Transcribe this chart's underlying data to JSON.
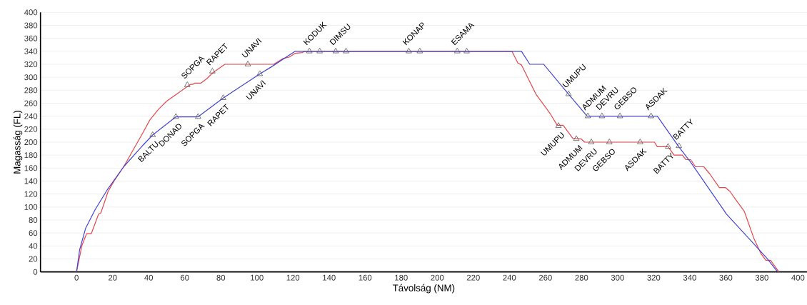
{
  "chart_data": {
    "type": "line",
    "xlabel": "Távolság (NM)",
    "ylabel": "Magasság (FL)",
    "xlim": [
      -20,
      405
    ],
    "xticks": [
      0,
      20,
      40,
      60,
      80,
      100,
      120,
      140,
      160,
      180,
      200,
      220,
      240,
      260,
      280,
      300,
      320,
      340,
      360,
      380,
      400
    ],
    "ylim": [
      0,
      400
    ],
    "yticks": [
      0,
      20,
      40,
      60,
      80,
      100,
      120,
      140,
      160,
      180,
      200,
      220,
      240,
      260,
      280,
      300,
      320,
      340,
      360,
      380,
      400
    ],
    "grid": "y",
    "series": [
      {
        "color": "#e0474c",
        "marker": "none",
        "x": [
          0,
          3,
          5.6,
          8.2,
          12.2,
          13.5,
          17.5,
          20.8,
          26.1,
          31.4,
          36.7,
          40.6,
          45.2,
          49.9,
          56.5,
          63.1,
          64.4,
          65.7,
          69,
          72.3,
          75.6,
          82.2,
          109.3,
          114.6,
          117.9,
          121.2,
          125.2,
          126.5,
          241.4,
          244.7,
          246.7,
          254.7,
          262.6,
          266.5,
          269.8,
          275.1,
          277.1,
          279.8,
          281.7,
          320.4,
          322,
          328,
          331.3,
          335.9,
          337.9,
          340.5,
          343.2,
          347.8,
          351.1,
          356.4,
          359.7,
          362.3,
          365.6,
          370.3,
          375.5,
          379.5,
          382.2,
          384.8,
          389.4
        ],
        "values": [
          0,
          41,
          59,
          59,
          89,
          91,
          124,
          140,
          162,
          188,
          214,
          234,
          250,
          263,
          276,
          289,
          289,
          291,
          291,
          298,
          307,
          320,
          320,
          329,
          331,
          337,
          338,
          340,
          340,
          322,
          319,
          274,
          244,
          226,
          226,
          206,
          205,
          205,
          200,
          200,
          193,
          193,
          180,
          180,
          173,
          173,
          162,
          162,
          151,
          130,
          130,
          124,
          111,
          93,
          52,
          28,
          18,
          18,
          0
        ]
      },
      {
        "color": "#4343cf",
        "marker": "none",
        "x": [
          0,
          1.7,
          5,
          10.3,
          16.9,
          26.1,
          36.7,
          42.2,
          55.1,
          67.4,
          81.3,
          101.6,
          108,
          121.2,
          246.7,
          251.3,
          259,
          272.8,
          283.1,
          322,
          333.9,
          340.5,
          360.4,
          373.6,
          382.8,
          388.7
        ],
        "values": [
          0,
          34,
          67,
          96,
          126,
          162,
          195,
          211,
          239,
          239,
          268,
          305,
          316,
          340,
          340,
          320,
          320,
          274,
          240,
          240,
          193,
          169,
          89,
          49,
          21,
          0
        ]
      },
      {
        "type": "scatter",
        "color": "#555555",
        "marker": "triangle",
        "x": [
          61.4,
          75.3,
          95,
          129.1,
          143.7,
          184.2,
          211.1,
          267.2,
          277.1,
          285.4,
          295.4,
          312.5,
          328
        ],
        "values": [
          288,
          309,
          320,
          340,
          340,
          340,
          340,
          225,
          205,
          200,
          200,
          200,
          193
        ]
      },
      {
        "type": "scatter",
        "color": "#555555",
        "marker": "triangle",
        "x": [
          42.2,
          55.1,
          67.4,
          81.3,
          101.6,
          134.8,
          149.4,
          190.3,
          216.3,
          272.8,
          283.5,
          291.3,
          301.3,
          318.5,
          334
        ],
        "values": [
          211,
          239,
          239,
          268,
          305,
          340,
          340,
          340,
          340,
          274,
          240,
          240,
          240,
          240,
          194
        ]
      }
    ],
    "annotations": [
      {
        "text": "SOPGA",
        "x": 61.4,
        "y": 288
      },
      {
        "text": "RAPET",
        "x": 75.3,
        "y": 309
      },
      {
        "text": "UNAVI",
        "x": 95,
        "y": 320
      },
      {
        "text": "KODUK",
        "x": 129.1,
        "y": 340
      },
      {
        "text": "DIMSU",
        "x": 143.7,
        "y": 340
      },
      {
        "text": "KONAP",
        "x": 184.2,
        "y": 340
      },
      {
        "text": "ESAMA",
        "x": 211.1,
        "y": 340
      },
      {
        "text": "UMUPU",
        "x": 267.2,
        "y": 225
      },
      {
        "text": "ADMUM",
        "x": 277.1,
        "y": 205
      },
      {
        "text": "DEVRU",
        "x": 285.4,
        "y": 200
      },
      {
        "text": "GEBSO",
        "x": 295.4,
        "y": 200
      },
      {
        "text": "ASDAK",
        "x": 312.5,
        "y": 200
      },
      {
        "text": "BATTY",
        "x": 328,
        "y": 193
      },
      {
        "text": "BALTU",
        "x": 42.2,
        "y": 211
      },
      {
        "text": "DONAD",
        "x": 55.1,
        "y": 239
      },
      {
        "text": "SOPGA",
        "x": 67.4,
        "y": 239
      },
      {
        "text": "RAPET",
        "x": 81.3,
        "y": 268
      },
      {
        "text": "UNAVI",
        "x": 101.6,
        "y": 305
      },
      {
        "text": "UMUPU",
        "x": 272.8,
        "y": 274
      },
      {
        "text": "ADMUM",
        "x": 283.5,
        "y": 240
      },
      {
        "text": "DEVRU",
        "x": 291.3,
        "y": 240
      },
      {
        "text": "GEBSO",
        "x": 301.3,
        "y": 240
      },
      {
        "text": "ASDAK",
        "x": 318.5,
        "y": 240
      },
      {
        "text": "BATTY",
        "x": 334,
        "y": 194
      }
    ]
  }
}
